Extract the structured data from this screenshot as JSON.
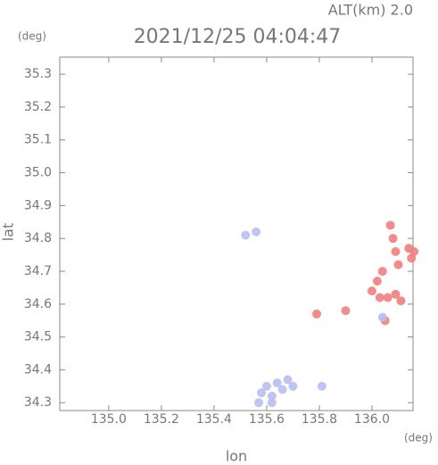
{
  "chart_data": {
    "type": "scatter",
    "title": "2021/12/25 04:04:47",
    "altitude_label": "ALT(km) 2.0",
    "y_unit": "(deg)",
    "x_unit": "(deg)",
    "xlabel": "lon",
    "ylabel": "lat",
    "xlim": [
      134.814,
      136.156
    ],
    "ylim": [
      34.276,
      35.352
    ],
    "xticks": [
      {
        "value": 135.0,
        "label": "135.0"
      },
      {
        "value": 135.2,
        "label": "135.2"
      },
      {
        "value": 135.4,
        "label": "135.4"
      },
      {
        "value": 135.6,
        "label": "135.6"
      },
      {
        "value": 135.8,
        "label": "135.8"
      },
      {
        "value": 136.0,
        "label": "136.0"
      }
    ],
    "yticks": [
      {
        "value": 34.3,
        "label": "34.3"
      },
      34.4,
      34.5,
      34.6,
      34.7,
      34.8,
      34.9,
      {
        "value": 35.0,
        "label": "35.0"
      },
      35.1,
      35.2,
      35.3
    ],
    "series": [
      {
        "color": "#f08080",
        "x": [
          136.07,
          136.08,
          136.09,
          136.1,
          136.14,
          136.16,
          136.15,
          136.04,
          136.02,
          136.0,
          136.03,
          136.06,
          136.09,
          136.11,
          136.05,
          135.9,
          135.79
        ],
        "values": [
          34.84,
          34.8,
          34.76,
          34.72,
          34.77,
          34.76,
          34.74,
          34.7,
          34.67,
          34.64,
          34.62,
          34.62,
          34.63,
          34.61,
          34.55,
          34.58,
          34.57
        ]
      },
      {
        "color": "#b8bff0",
        "x": [
          135.52,
          135.56,
          135.58,
          135.6,
          135.62,
          135.64,
          135.66,
          135.68,
          135.7,
          135.57,
          135.62,
          135.81,
          136.04
        ],
        "values": [
          34.81,
          34.82,
          34.33,
          34.35,
          34.32,
          34.36,
          34.34,
          34.37,
          34.35,
          34.3,
          34.3,
          34.35,
          34.56
        ]
      }
    ]
  }
}
